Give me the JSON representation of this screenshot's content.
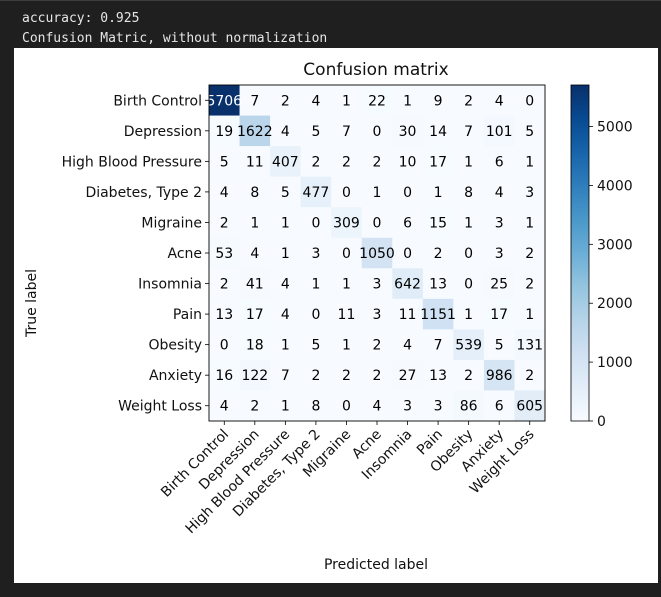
{
  "console": {
    "accuracy_line": "accuracy: 0.925",
    "title_line": "Confusion Matric, without normalization"
  },
  "chart_data": {
    "type": "heatmap",
    "title": "Confusion matrix",
    "xlabel": "Predicted label",
    "ylabel": "True label",
    "labels": [
      "Birth Control",
      "Depression",
      "High Blood Pressure",
      "Diabetes, Type 2",
      "Migraine",
      "Acne",
      "Insomnia",
      "Pain",
      "Obesity",
      "Anxiety",
      "Weight Loss"
    ],
    "matrix": [
      [
        5706,
        7,
        2,
        4,
        1,
        22,
        1,
        9,
        2,
        4,
        0
      ],
      [
        19,
        1622,
        4,
        5,
        7,
        0,
        30,
        14,
        7,
        101,
        5
      ],
      [
        5,
        11,
        407,
        2,
        2,
        2,
        10,
        17,
        1,
        6,
        1
      ],
      [
        4,
        8,
        5,
        477,
        0,
        1,
        0,
        1,
        8,
        4,
        3
      ],
      [
        2,
        1,
        1,
        0,
        309,
        0,
        6,
        15,
        1,
        3,
        1
      ],
      [
        53,
        4,
        1,
        3,
        0,
        1050,
        0,
        2,
        0,
        3,
        2
      ],
      [
        2,
        41,
        4,
        1,
        1,
        3,
        642,
        13,
        0,
        25,
        2
      ],
      [
        13,
        17,
        4,
        0,
        11,
        3,
        11,
        1151,
        1,
        17,
        1
      ],
      [
        0,
        18,
        1,
        5,
        1,
        2,
        4,
        7,
        539,
        5,
        131
      ],
      [
        16,
        122,
        7,
        2,
        2,
        2,
        27,
        13,
        2,
        986,
        2
      ],
      [
        4,
        2,
        1,
        8,
        0,
        4,
        3,
        3,
        86,
        6,
        605
      ]
    ],
    "colorbar": {
      "min": 0,
      "max": 5706,
      "ticks": [
        0,
        1000,
        2000,
        3000,
        4000,
        5000
      ]
    },
    "colormap": "Blues",
    "colors": {
      "low": "#f7fbff",
      "high": "#08306b"
    }
  }
}
